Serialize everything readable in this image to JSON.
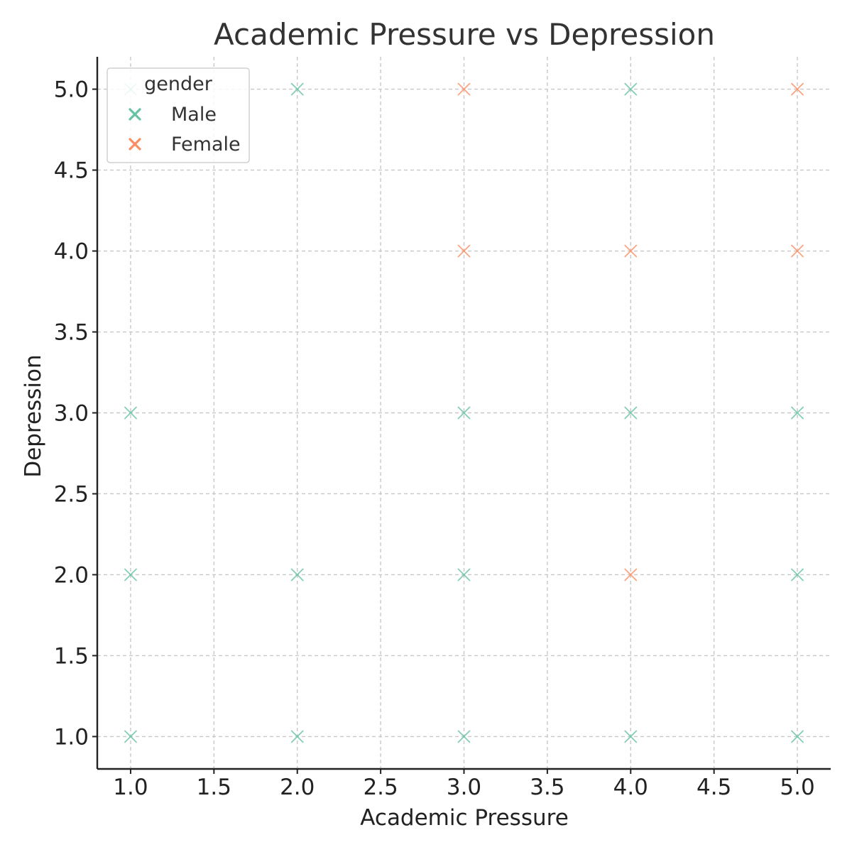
{
  "chart_data": {
    "type": "scatter",
    "title": "Academic Pressure vs Depression",
    "xlabel": "Academic Pressure",
    "ylabel": "Depression",
    "xlim": [
      0.8,
      5.2
    ],
    "ylim": [
      0.8,
      5.2
    ],
    "xticks": [
      "1.0",
      "1.5",
      "2.0",
      "2.5",
      "3.0",
      "3.5",
      "4.0",
      "4.5",
      "5.0"
    ],
    "yticks": [
      "1.0",
      "1.5",
      "2.0",
      "2.5",
      "3.0",
      "3.5",
      "4.0",
      "4.5",
      "5.0"
    ],
    "grid": true,
    "marker": "x",
    "legend": {
      "title": "gender",
      "position": "top-left"
    },
    "series": [
      {
        "name": "Male",
        "color": "#66c2a5",
        "points": [
          [
            1,
            1
          ],
          [
            1,
            2
          ],
          [
            1,
            3
          ],
          [
            1,
            5
          ],
          [
            2,
            1
          ],
          [
            2,
            2
          ],
          [
            2,
            5
          ],
          [
            3,
            1
          ],
          [
            3,
            2
          ],
          [
            3,
            3
          ],
          [
            4,
            1
          ],
          [
            4,
            3
          ],
          [
            4,
            5
          ],
          [
            5,
            1
          ],
          [
            5,
            2
          ],
          [
            5,
            3
          ]
        ]
      },
      {
        "name": "Female",
        "color": "#fc8d62",
        "points": [
          [
            3,
            4
          ],
          [
            3,
            5
          ],
          [
            4,
            2
          ],
          [
            4,
            4
          ],
          [
            5,
            4
          ],
          [
            5,
            5
          ]
        ]
      }
    ]
  }
}
